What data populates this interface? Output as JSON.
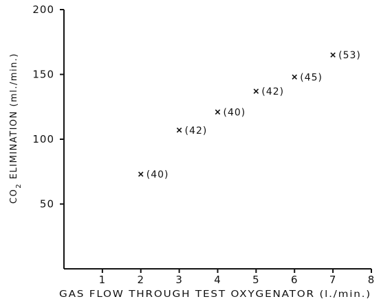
{
  "chart_data": {
    "type": "scatter",
    "xlabel": "GAS FLOW THROUGH TEST OXYGENATOR (l./min.)",
    "ylabel": "CO2 ELIMINATION (ml./min.)",
    "xlim": [
      0,
      8
    ],
    "ylim": [
      0,
      200
    ],
    "x_ticks": [
      1,
      2,
      3,
      4,
      5,
      6,
      7,
      8
    ],
    "y_ticks": [
      50,
      100,
      150,
      200
    ],
    "grid": false,
    "marker": "x",
    "points": [
      {
        "x": 2,
        "y": 73,
        "label": "(40)"
      },
      {
        "x": 3,
        "y": 107,
        "label": "(42)"
      },
      {
        "x": 4,
        "y": 121,
        "label": "(40)"
      },
      {
        "x": 5,
        "y": 137,
        "label": "(42)"
      },
      {
        "x": 6,
        "y": 148,
        "label": "(45)"
      },
      {
        "x": 7,
        "y": 165,
        "label": "(53)"
      }
    ]
  }
}
